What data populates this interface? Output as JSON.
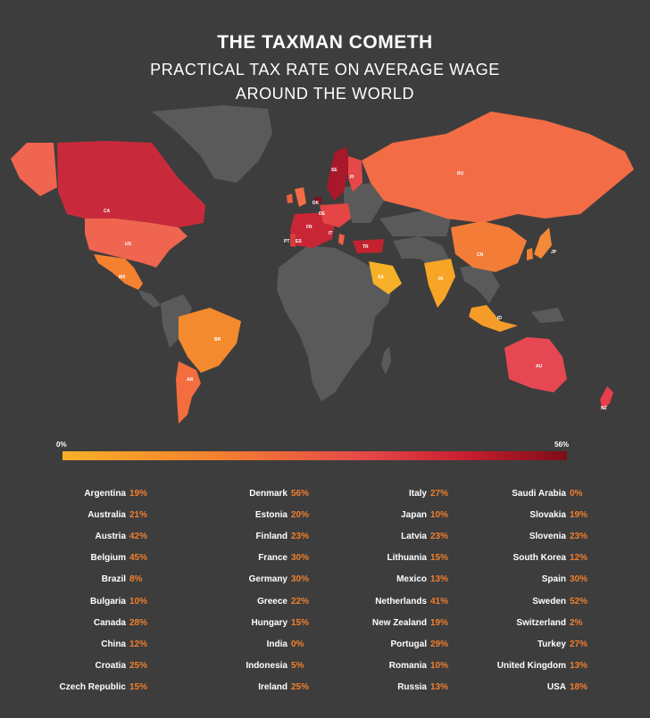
{
  "title": "THE TAXMAN COMETH",
  "subtitle_line1": "PRACTICAL TAX RATE ON AVERAGE WAGE",
  "subtitle_line2": "AROUND THE WORLD",
  "colors": {
    "background": "#3d3d3d",
    "no_data_land": "#5a5a5a",
    "value_text": "#f27f2d",
    "scale_low": "#f7b027",
    "scale_high": "#7d0d17"
  },
  "scale": {
    "min_label": "0%",
    "max_label": "56%",
    "min": 0,
    "max": 56
  },
  "map_labels": [
    "CA",
    "US",
    "MX",
    "BR",
    "AR",
    "SE",
    "FI",
    "RU",
    "CN",
    "IN",
    "SA",
    "ID",
    "AU",
    "NZ",
    "TR",
    "ES",
    "FR",
    "DE",
    "DK",
    "PT",
    "JP",
    "IT"
  ],
  "columns": [
    [
      {
        "country": "Argentina",
        "value": "19%"
      },
      {
        "country": "Australia",
        "value": "21%"
      },
      {
        "country": "Austria",
        "value": "42%"
      },
      {
        "country": "Belgium",
        "value": "45%"
      },
      {
        "country": "Brazil",
        "value": "8%"
      },
      {
        "country": "Bulgaria",
        "value": "10%"
      },
      {
        "country": "Canada",
        "value": "28%"
      },
      {
        "country": "China",
        "value": "12%"
      },
      {
        "country": "Croatia",
        "value": "25%"
      },
      {
        "country": "Czech Republic",
        "value": "15%"
      }
    ],
    [
      {
        "country": "Denmark",
        "value": "56%"
      },
      {
        "country": "Estonia",
        "value": "20%"
      },
      {
        "country": "Finland",
        "value": "23%"
      },
      {
        "country": "France",
        "value": "30%"
      },
      {
        "country": "Germany",
        "value": "30%"
      },
      {
        "country": "Greece",
        "value": "22%"
      },
      {
        "country": "Hungary",
        "value": "15%"
      },
      {
        "country": "India",
        "value": "0%"
      },
      {
        "country": "Indonesia",
        "value": "5%"
      },
      {
        "country": "Ireland",
        "value": "25%"
      }
    ],
    [
      {
        "country": "Italy",
        "value": "27%"
      },
      {
        "country": "Japan",
        "value": "10%"
      },
      {
        "country": "Latvia",
        "value": "23%"
      },
      {
        "country": "Lithuania",
        "value": "15%"
      },
      {
        "country": "Mexico",
        "value": "13%"
      },
      {
        "country": "Netherlands",
        "value": "41%"
      },
      {
        "country": "New Zealand",
        "value": "19%"
      },
      {
        "country": "Portugal",
        "value": "29%"
      },
      {
        "country": "Romania",
        "value": "10%"
      },
      {
        "country": "Russia",
        "value": "13%"
      }
    ],
    [
      {
        "country": "Saudi Arabia",
        "value": "0%"
      },
      {
        "country": "Slovakia",
        "value": "19%"
      },
      {
        "country": "Slovenia",
        "value": "23%"
      },
      {
        "country": "South Korea",
        "value": "12%"
      },
      {
        "country": "Spain",
        "value": "30%"
      },
      {
        "country": "Sweden",
        "value": "52%"
      },
      {
        "country": "Switzerland",
        "value": "2%"
      },
      {
        "country": "Turkey",
        "value": "27%"
      },
      {
        "country": "United Kingdom",
        "value": "13%"
      },
      {
        "country": "USA",
        "value": "18%"
      }
    ]
  ]
}
